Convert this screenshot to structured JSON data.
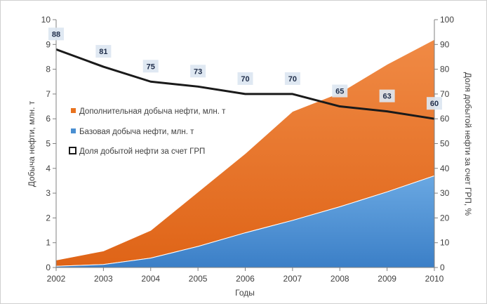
{
  "chart_data": {
    "type": "area",
    "x": [
      2002,
      2003,
      2004,
      2005,
      2006,
      2007,
      2008,
      2009,
      2010
    ],
    "xlabel": "Годы",
    "ylabel_left": "Добыча нефти, млн. т",
    "ylabel_right": "Доля добытой нефти за счет ГРП, %",
    "ylim_left": [
      0,
      10
    ],
    "ylim_right": [
      0,
      100
    ],
    "yticks_left": [
      "0",
      "1",
      "2",
      "3",
      "4",
      "5",
      "6",
      "7",
      "8",
      "9",
      "10"
    ],
    "yticks_right": [
      "0",
      "10",
      "20",
      "30",
      "40",
      "50",
      "60",
      "70",
      "80",
      "90",
      "100"
    ],
    "xticks": [
      "2002",
      "2003",
      "2004",
      "2005",
      "2006",
      "2007",
      "2008",
      "2009",
      "2010"
    ],
    "grid": false,
    "legend_position": "center-left",
    "series": [
      {
        "name": "Базовая добыча нефти, млн. т",
        "kind": "stacked-area",
        "axis": "left",
        "color": "#4a8fd1",
        "values": [
          0.05,
          0.12,
          0.38,
          0.85,
          1.4,
          1.9,
          2.45,
          3.05,
          3.7
        ]
      },
      {
        "name": "Дополнительная добыча нефти, млн. т",
        "kind": "stacked-area",
        "axis": "left",
        "color": "#e8731f",
        "values": [
          0.25,
          0.55,
          1.12,
          2.2,
          3.2,
          4.4,
          4.6,
          5.15,
          5.5
        ]
      },
      {
        "name": "Доля добытой нефти за счет ГРП",
        "kind": "line",
        "axis": "right",
        "color": "#1a1a1a",
        "values": [
          88,
          81,
          75,
          73,
          70,
          70,
          65,
          63,
          60
        ],
        "labels": [
          "88",
          "81",
          "75",
          "73",
          "70",
          "70",
          "65",
          "63",
          "60"
        ]
      }
    ]
  }
}
